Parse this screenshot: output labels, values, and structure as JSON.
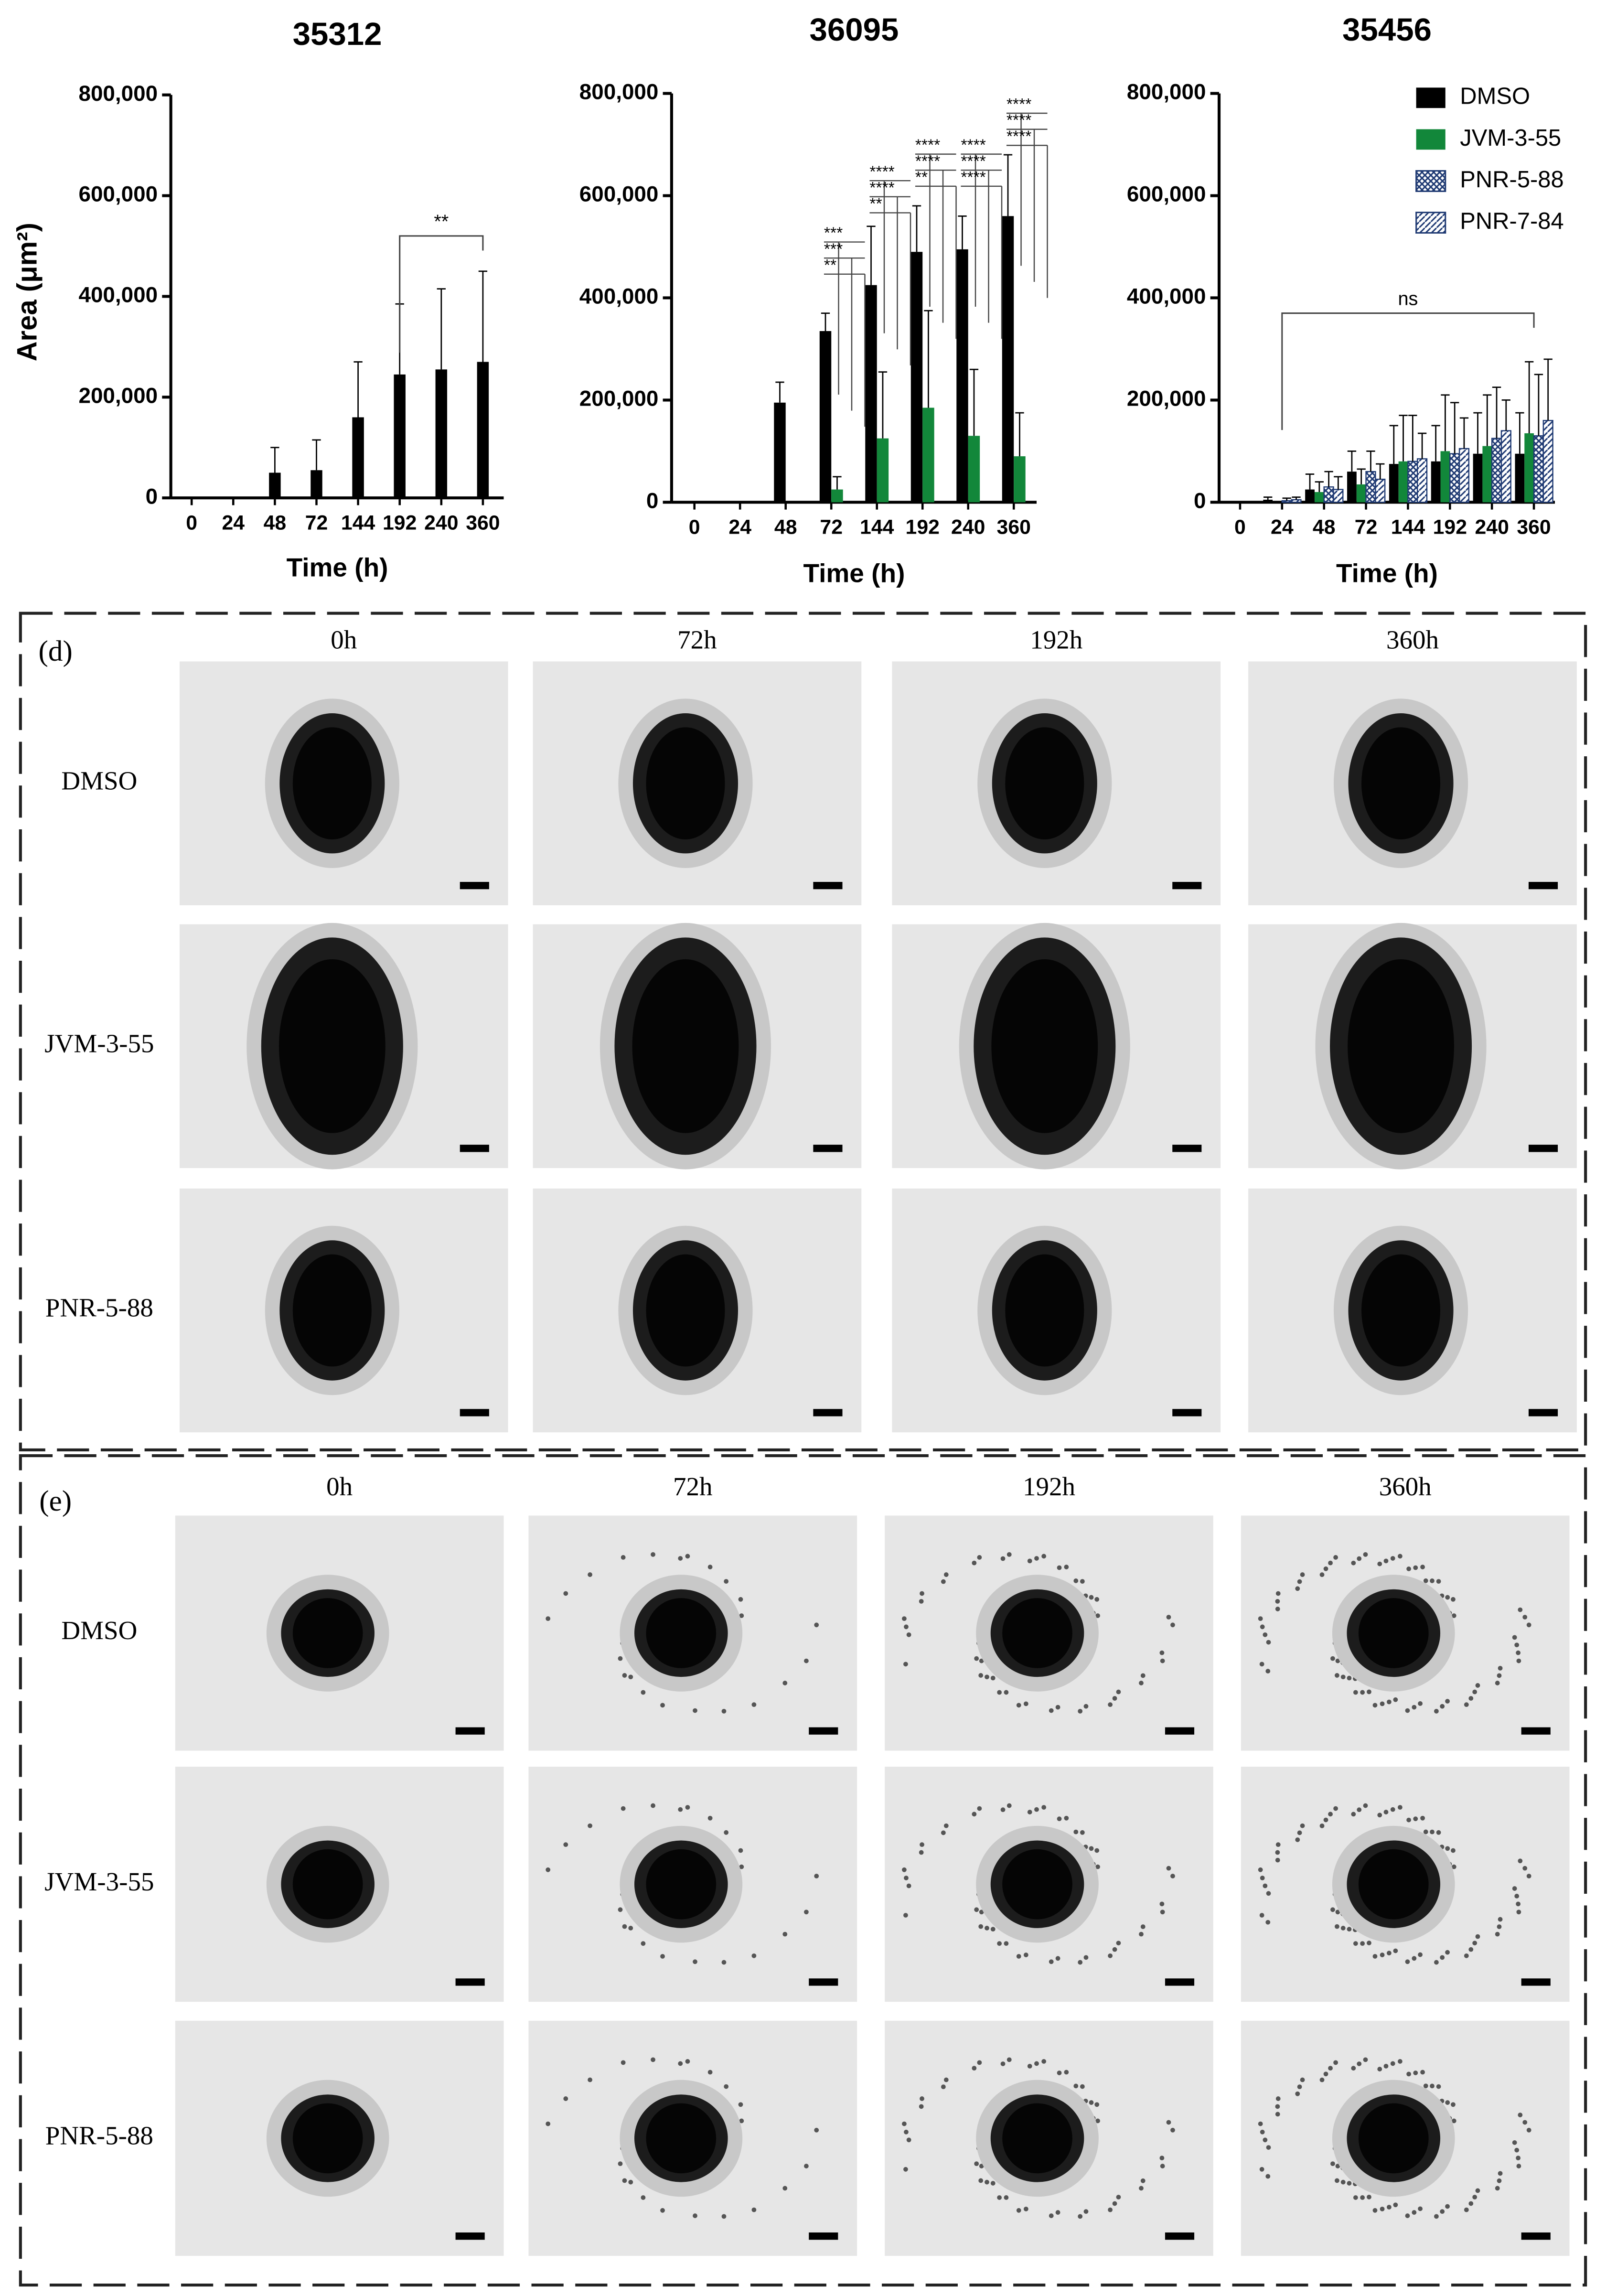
{
  "chart_data": [
    {
      "type": "bar",
      "title": "35312",
      "ylabel": "Area (μm²)",
      "xlabel": "Time (h)",
      "categories": [
        "0",
        "24",
        "48",
        "72",
        "144",
        "192",
        "240",
        "360"
      ],
      "series": [
        {
          "color": "#000000",
          "values": [
            0,
            0,
            50000,
            55000,
            160000,
            245000,
            255000,
            270000
          ],
          "errors": [
            null,
            null,
            50000,
            60000,
            110000,
            140000,
            160000,
            180000
          ]
        }
      ],
      "ylim": [
        0,
        800000
      ],
      "yticks": [
        0,
        {
          "value": 200000,
          "label": "200,000"
        },
        {
          "value": 400000,
          "label": "400,000"
        },
        {
          "value": 600000,
          "label": "600,000"
        },
        {
          "value": 800000,
          "label": "800,000"
        }
      ],
      "annotations": [
        {
          "text": "**",
          "from": "192",
          "to": "360",
          "y": 520000
        }
      ]
    },
    {
      "type": "bar",
      "title": "36095",
      "xlabel": "Time (h)",
      "categories": [
        "0",
        "24",
        "48",
        "72",
        "144",
        "192",
        "240",
        "360"
      ],
      "series": [
        {
          "color": "#000000",
          "values": [
            0,
            0,
            195000,
            335000,
            425000,
            490000,
            495000,
            560000
          ],
          "errors": [
            null,
            null,
            40000,
            35000,
            115000,
            90000,
            65000,
            120000
          ]
        },
        {
          "color": "#12873a",
          "values": [
            0,
            0,
            0,
            25000,
            125000,
            185000,
            130000,
            90000
          ],
          "errors": [
            null,
            null,
            null,
            25000,
            130000,
            190000,
            130000,
            85000
          ]
        }
      ],
      "ylim": [
        0,
        800000
      ],
      "yticks": [
        0,
        {
          "value": 200000,
          "label": "200,000"
        },
        {
          "value": 400000,
          "label": "400,000"
        },
        {
          "value": 600000,
          "label": "600,000"
        },
        {
          "value": 800000,
          "label": "800,000"
        }
      ],
      "annotations": [
        {
          "from": "72",
          "labels": [
            "***",
            "***",
            "**"
          ],
          "y": 525000
        },
        {
          "from": "144",
          "labels": [
            "****",
            "****",
            "**"
          ],
          "y": 645000
        },
        {
          "from": "192",
          "labels": [
            "****",
            "****",
            "**"
          ],
          "y": 697000
        },
        {
          "from": "240",
          "labels": [
            "****",
            "****",
            "****"
          ],
          "y": 697000
        },
        {
          "from": "360",
          "labels": [
            "****",
            "****",
            "****"
          ],
          "y": 777000
        }
      ]
    },
    {
      "type": "bar",
      "title": "35456",
      "xlabel": "Time (h)",
      "legend": "upper right",
      "categories": [
        "0",
        "24",
        "48",
        "72",
        "144",
        "192",
        "240",
        "360"
      ],
      "series": [
        {
          "name": "DMSO",
          "color": "#000000",
          "values": [
            0,
            5000,
            25000,
            60000,
            75000,
            80000,
            95000,
            95000
          ],
          "errors": [
            null,
            5000,
            30000,
            40000,
            75000,
            70000,
            80000,
            80000
          ]
        },
        {
          "name": "JVM-3-55",
          "color": "#12873a",
          "values": [
            0,
            0,
            20000,
            35000,
            80000,
            100000,
            110000,
            135000
          ],
          "errors": [
            null,
            null,
            20000,
            30000,
            90000,
            110000,
            100000,
            140000
          ]
        },
        {
          "name": "PNR-5-88",
          "color": "#1f3a73",
          "hatch": "cross",
          "values": [
            0,
            3000,
            30000,
            60000,
            80000,
            95000,
            125000,
            130000
          ],
          "errors": [
            null,
            5000,
            30000,
            40000,
            90000,
            100000,
            100000,
            120000
          ]
        },
        {
          "name": "PNR-7-84",
          "color": "#1f3a73",
          "hatch": "diagonal",
          "values": [
            0,
            5000,
            25000,
            45000,
            85000,
            105000,
            140000,
            160000
          ],
          "errors": [
            null,
            5000,
            25000,
            30000,
            50000,
            60000,
            60000,
            120000
          ]
        }
      ],
      "ylim": [
        0,
        800000
      ],
      "yticks": [
        0,
        {
          "value": 200000,
          "label": "200,000"
        },
        {
          "value": 400000,
          "label": "400,000"
        },
        {
          "value": 600000,
          "label": "600,000"
        },
        {
          "value": 800000,
          "label": "800,000"
        }
      ],
      "annotations": [
        {
          "text": "ns",
          "from": "24",
          "to": "360",
          "y": 370000
        }
      ]
    }
  ],
  "image_panels": [
    {
      "label": "(d)",
      "columns": [
        "0h",
        "72h",
        "192h",
        "360h"
      ],
      "rows": [
        "DMSO",
        "JVM-3-55",
        "PNR-5-88"
      ]
    },
    {
      "label": "(e)",
      "columns": [
        "0h",
        "72h",
        "192h",
        "360h"
      ],
      "rows": [
        "DMSO",
        "JVM-3-55",
        "PNR-5-88"
      ]
    }
  ]
}
